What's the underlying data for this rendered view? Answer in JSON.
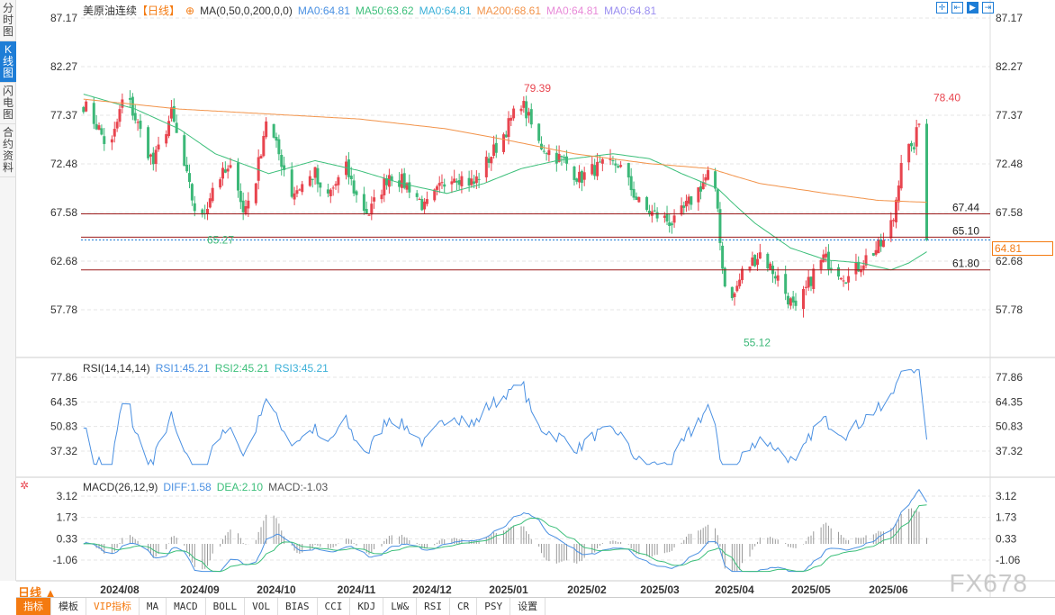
{
  "sidebar": {
    "tabs": [
      {
        "label": "分时图"
      },
      {
        "label": "K线图",
        "active": true
      },
      {
        "label": "闪电图"
      },
      {
        "label": "合约资料"
      }
    ]
  },
  "header": {
    "symbol": "美原油连续",
    "period_tag": "【日线】",
    "ma_label": "MA(0,50,0,200,0,0)",
    "ma_values": [
      {
        "text": "MA0:64.81",
        "color": "#4a90e2"
      },
      {
        "text": "MA50:63.62",
        "color": "#3cbf7a"
      },
      {
        "text": "MA0:64.81",
        "color": "#3bb0d8"
      },
      {
        "text": "MA200:68.61",
        "color": "#f2934a"
      },
      {
        "text": "MA0:64.81",
        "color": "#e88ad8"
      },
      {
        "text": "MA0:64.81",
        "color": "#9a8ef0"
      }
    ]
  },
  "tools": [
    {
      "icon": "crosshair-icon"
    },
    {
      "icon": "fit-width-icon"
    },
    {
      "icon": "play-icon"
    },
    {
      "icon": "goto-end-icon"
    }
  ],
  "rsi": {
    "label": "RSI(14,14,14)",
    "values": [
      {
        "text": "RSI1:45.21",
        "color": "#4a90e2"
      },
      {
        "text": "RSI2:45.21",
        "color": "#3cbf7a"
      },
      {
        "text": "RSI3:45.21",
        "color": "#3bb0d8"
      }
    ]
  },
  "macd": {
    "label": "MACD(26,12,9)",
    "values": [
      {
        "text": "DIFF:1.58",
        "color": "#4a90e2"
      },
      {
        "text": "DEA:2.10",
        "color": "#3cbf7a"
      },
      {
        "text": "MACD:-1.03",
        "color": "#555"
      }
    ]
  },
  "period_button": "日线 ▲",
  "toolbar": [
    {
      "label": "指标",
      "active": true
    },
    {
      "label": "模板"
    },
    {
      "label": "VIP指标",
      "vip": true
    },
    {
      "label": "MA"
    },
    {
      "label": "MACD"
    },
    {
      "label": "BOLL"
    },
    {
      "label": "VOL"
    },
    {
      "label": "BIAS"
    },
    {
      "label": "CCI"
    },
    {
      "label": "KDJ"
    },
    {
      "label": "LW&"
    },
    {
      "label": "RSI"
    },
    {
      "label": "CR"
    },
    {
      "label": "PSY"
    },
    {
      "label": "设置"
    }
  ],
  "watermark": "FX678",
  "colors": {
    "up": "#e8454f",
    "down": "#3cb878",
    "ma50": "#3cbf7a",
    "ma200": "#f2934a",
    "level": "#9b1b1b",
    "last": "#1e7dd6",
    "accent": "#f47a10"
  },
  "chart_data": {
    "type": "candlestick",
    "price_ticks": [
      "87.17",
      "82.27",
      "77.37",
      "72.48",
      "67.58",
      "62.68",
      "57.78"
    ],
    "rsi_ticks": [
      "77.86",
      "64.35",
      "50.83",
      "37.32"
    ],
    "macd_ticks": [
      "3.12",
      "1.73",
      "0.33",
      "-1.06"
    ],
    "x_ticks": [
      "2024/08",
      "2024/09",
      "2024/10",
      "2024/11",
      "2024/12",
      "2025/01",
      "2025/02",
      "2025/03",
      "2025/04",
      "2025/05",
      "2025/06"
    ],
    "last_price": "64.81",
    "levels": [
      {
        "value": "67.44"
      },
      {
        "value": "65.10"
      },
      {
        "value": "61.80"
      }
    ],
    "annotations": [
      {
        "text": "79.39",
        "type": "high"
      },
      {
        "text": "65.27",
        "type": "low"
      },
      {
        "text": "55.12",
        "type": "low"
      },
      {
        "text": "78.40",
        "type": "high"
      }
    ],
    "close_path": [
      [
        "2024-07-18",
        78.5
      ],
      [
        "2024-07-24",
        76
      ],
      [
        "2024-07-28",
        73.5
      ],
      [
        "2024-08-03",
        79.8
      ],
      [
        "2024-08-10",
        75
      ],
      [
        "2024-08-14",
        72.5
      ],
      [
        "2024-08-21",
        77.5
      ],
      [
        "2024-08-28",
        70
      ],
      [
        "2024-09-01",
        66
      ],
      [
        "2024-09-07",
        71
      ],
      [
        "2024-09-15",
        72
      ],
      [
        "2024-09-18",
        67.5
      ],
      [
        "2024-09-23",
        71
      ],
      [
        "2024-09-27",
        77
      ],
      [
        "2024-10-04",
        72
      ],
      [
        "2024-10-07",
        69.5
      ],
      [
        "2024-10-16",
        71.5
      ],
      [
        "2024-10-19",
        68.5
      ],
      [
        "2024-10-28",
        72
      ],
      [
        "2024-11-02",
        68.5
      ],
      [
        "2024-11-06",
        67.5
      ],
      [
        "2024-11-14",
        71.5
      ],
      [
        "2024-11-23",
        70
      ],
      [
        "2024-11-28",
        68
      ],
      [
        "2024-12-09",
        71.5
      ],
      [
        "2024-12-18",
        70.5
      ],
      [
        "2024-12-24",
        73
      ],
      [
        "2024-12-29",
        75
      ],
      [
        "2025-01-06",
        78.8
      ],
      [
        "2025-01-13",
        74.5
      ],
      [
        "2025-01-24",
        72.5
      ],
      [
        "2025-01-29",
        71
      ],
      [
        "2025-02-04",
        72
      ],
      [
        "2025-02-13",
        72.5
      ],
      [
        "2025-02-22",
        68
      ],
      [
        "2025-03-02",
        67
      ],
      [
        "2025-03-07",
        66.5
      ],
      [
        "2025-03-16",
        69.5
      ],
      [
        "2025-03-22",
        71.8
      ],
      [
        "2025-03-25",
        68
      ],
      [
        "2025-03-27",
        62
      ],
      [
        "2025-03-30",
        58
      ],
      [
        "2025-04-04",
        61.5
      ],
      [
        "2025-04-11",
        63.5
      ],
      [
        "2025-04-18",
        61
      ],
      [
        "2025-04-25",
        57.5
      ],
      [
        "2025-05-02",
        61.5
      ],
      [
        "2025-05-06",
        63
      ],
      [
        "2025-05-16",
        61
      ],
      [
        "2025-05-23",
        63
      ],
      [
        "2025-05-30",
        64.5
      ],
      [
        "2025-06-03",
        67
      ],
      [
        "2025-06-07",
        75
      ],
      [
        "2025-06-10",
        73.5
      ],
      [
        "2025-06-14",
        77.5
      ],
      [
        "2025-06-15",
        68
      ],
      [
        "2025-06-16",
        64.81
      ]
    ],
    "ma50_path": [
      [
        "2024-07-18",
        79.5
      ],
      [
        "2024-08-07",
        78
      ],
      [
        "2024-08-24",
        76
      ],
      [
        "2024-09-07",
        73.5
      ],
      [
        "2024-09-28",
        71.5
      ],
      [
        "2024-10-16",
        72.8
      ],
      [
        "2024-11-02",
        71.8
      ],
      [
        "2024-11-19",
        70.5
      ],
      [
        "2024-12-07",
        69.5
      ],
      [
        "2024-12-22",
        70.5
      ],
      [
        "2025-01-06",
        72
      ],
      [
        "2025-01-20",
        72.8
      ],
      [
        "2025-02-11",
        73.5
      ],
      [
        "2025-02-25",
        73
      ],
      [
        "2025-03-10",
        71.5
      ],
      [
        "2025-03-25",
        70
      ],
      [
        "2025-04-09",
        66.5
      ],
      [
        "2025-04-23",
        64
      ],
      [
        "2025-05-07",
        62.8
      ],
      [
        "2025-05-21",
        62.5
      ],
      [
        "2025-06-02",
        61.8
      ],
      [
        "2025-06-09",
        62.5
      ],
      [
        "2025-06-16",
        63.62
      ]
    ],
    "ma200_path": [
      [
        "2024-07-18",
        79
      ],
      [
        "2024-08-24",
        78
      ],
      [
        "2024-09-28",
        77.5
      ],
      [
        "2024-11-02",
        77
      ],
      [
        "2024-12-07",
        76
      ],
      [
        "2024-12-29",
        75
      ],
      [
        "2025-01-27",
        73.5
      ],
      [
        "2025-02-25",
        72.5
      ],
      [
        "2025-03-22",
        72
      ],
      [
        "2025-04-11",
        70.5
      ],
      [
        "2025-05-07",
        69.5
      ],
      [
        "2025-05-28",
        68.8
      ],
      [
        "2025-06-16",
        68.61
      ]
    ]
  }
}
